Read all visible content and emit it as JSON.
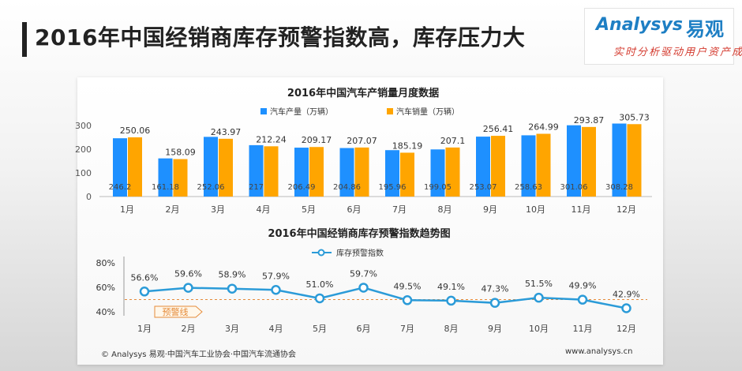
{
  "page": {
    "title": "2016年中国经销商库存预警指数高，库存压力大",
    "logo_word": "Analysys",
    "logo_cn": "易观",
    "logo_tagline": "实时分析驱动用户资产成长",
    "footer_source": "© Analysys 易观·中国汽车工业协会·中国汽车流通协会",
    "footer_url": "www.analysys.cn"
  },
  "colors": {
    "production": "#1e90ff",
    "sales": "#ffa500",
    "index_line": "#2b9bd8",
    "warning_line": "#e58b3a"
  },
  "chart_data": [
    {
      "type": "bar",
      "title": "2016年中国汽车产销量月度数据",
      "categories": [
        "1月",
        "2月",
        "3月",
        "4月",
        "5月",
        "6月",
        "7月",
        "8月",
        "9月",
        "10月",
        "11月",
        "12月"
      ],
      "series": [
        {
          "name": "汽车产量（万辆）",
          "values": [
            246.2,
            161.18,
            252.06,
            217,
            206.49,
            204.86,
            195.96,
            199.05,
            253.07,
            258.63,
            301.06,
            308.28
          ]
        },
        {
          "name": "汽车销量（万辆）",
          "values": [
            250.06,
            158.09,
            243.97,
            212.24,
            209.17,
            207.07,
            185.19,
            207.1,
            256.41,
            264.99,
            293.87,
            305.73
          ]
        }
      ],
      "ylim": [
        0,
        300
      ],
      "yticks": [
        "0",
        "100",
        "200",
        "300"
      ],
      "legend": "top-center",
      "grid": false
    },
    {
      "type": "line",
      "title": "2016年中国经销商库存预警指数趋势图",
      "categories": [
        "1月",
        "2月",
        "3月",
        "4月",
        "5月",
        "6月",
        "7月",
        "8月",
        "9月",
        "10月",
        "11月",
        "12月"
      ],
      "series": [
        {
          "name": "库存预警指数",
          "values": [
            56.6,
            59.6,
            58.9,
            57.9,
            51.0,
            59.7,
            49.5,
            49.1,
            47.3,
            51.5,
            49.9,
            42.9
          ]
        }
      ],
      "value_labels": [
        "56.6%",
        "59.6%",
        "58.9%",
        "57.9%",
        "51.0%",
        "59.7%",
        "49.5%",
        "49.1%",
        "47.3%",
        "51.5%",
        "49.9%",
        "42.9%"
      ],
      "ylim": [
        40,
        80
      ],
      "yticks": [
        "40%",
        "60%",
        "80%"
      ],
      "warning_line": {
        "value": 50,
        "label": "预警线"
      },
      "legend": "top-center",
      "grid": false
    }
  ]
}
